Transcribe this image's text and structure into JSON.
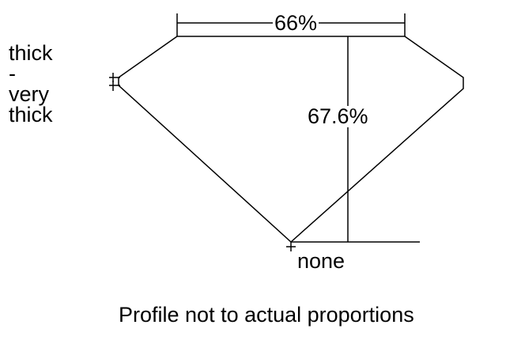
{
  "girdle_label": "thick\n-\nvery\nthick",
  "table_label": "66%",
  "depth_label": "67.6%",
  "culet_label": "none",
  "note": "Profile not to actual proportions",
  "colors": {
    "line": "#000000",
    "background": "#ffffff"
  }
}
